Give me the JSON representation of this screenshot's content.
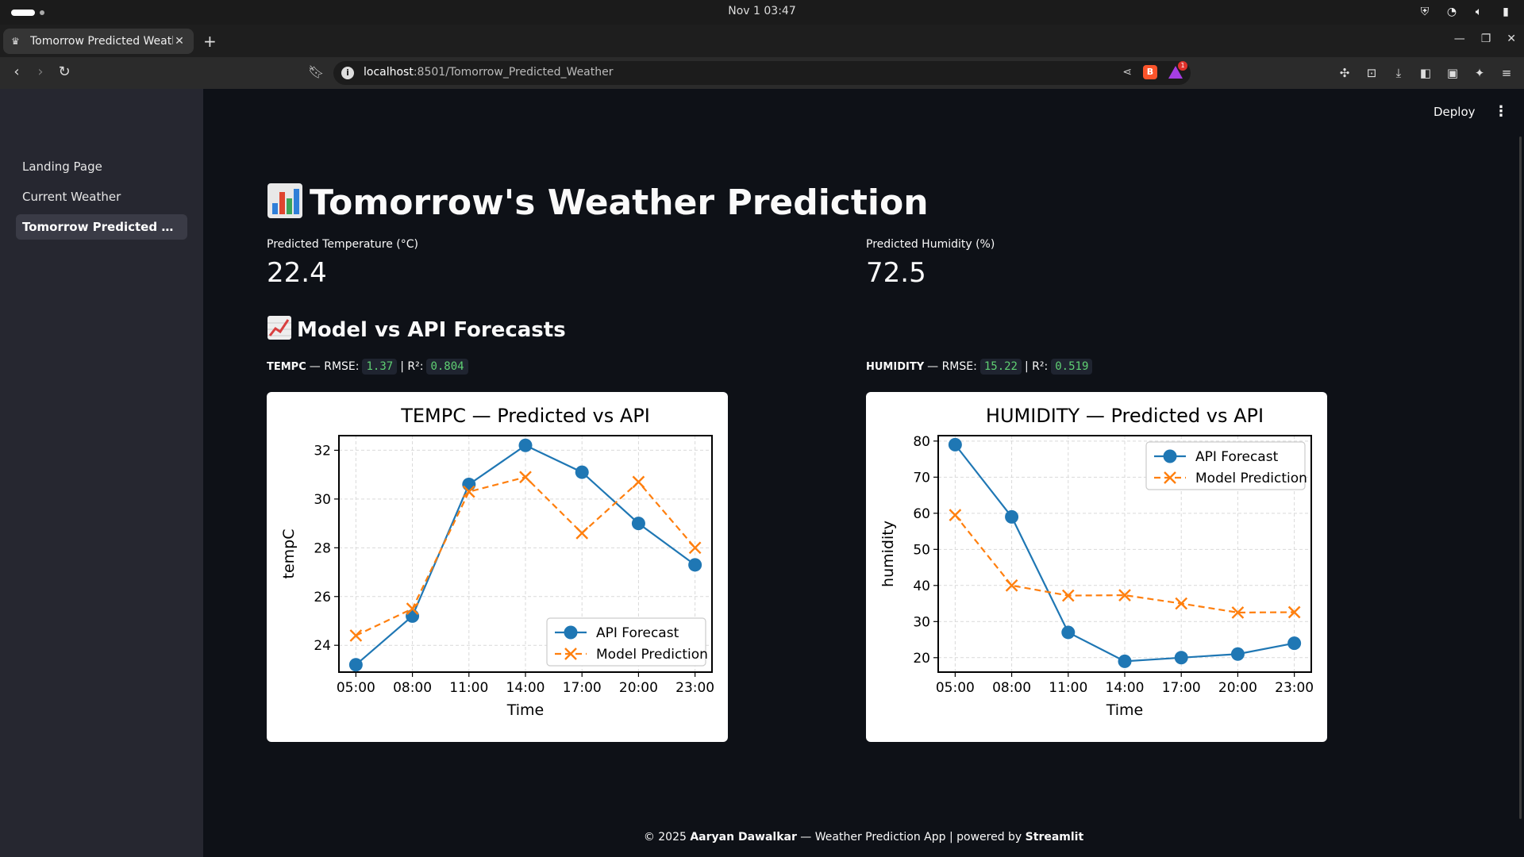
{
  "os": {
    "clock": "Nov 1  03:47"
  },
  "browser": {
    "tab_title": "Tomorrow Predicted Weather",
    "url_host": "localhost",
    "url_path": ":8501/Tomorrow_Predicted_Weather",
    "rewards_badge": "1"
  },
  "app": {
    "deploy_label": "Deploy",
    "sidebar": {
      "items": [
        {
          "label": "Landing Page"
        },
        {
          "label": "Current Weather"
        },
        {
          "label": "Tomorrow Predicted Weat..."
        }
      ]
    },
    "title": "Tomorrow's Weather Prediction",
    "metrics": [
      {
        "label": "Predicted Temperature (°C)",
        "value": "22.4"
      },
      {
        "label": "Predicted Humidity (%)",
        "value": "72.5"
      }
    ],
    "subheader": "Model vs API Forecasts",
    "stats": [
      {
        "name": "TEMPC",
        "rmse_label": "— RMSE:",
        "rmse": "1.37",
        "r2_label": "| R²:",
        "r2": "0.804"
      },
      {
        "name": "HUMIDITY",
        "rmse_label": "— RMSE:",
        "rmse": "15.22",
        "r2_label": "| R²:",
        "r2": "0.519"
      }
    ],
    "footer": {
      "prefix": "© 2025 ",
      "author": "Aaryan Dawalkar",
      "middle": " — Weather Prediction App | powered by ",
      "brand": "Streamlit"
    }
  },
  "colors": {
    "api_series": "#1f77b4",
    "model_series": "#ff7f0e",
    "code_text": "#5fd073"
  },
  "chart_data": [
    {
      "type": "line",
      "title": "TEMPC — Predicted vs API",
      "xlabel": "Time",
      "ylabel": "tempC",
      "categories": [
        "05:00",
        "08:00",
        "11:00",
        "14:00",
        "17:00",
        "20:00",
        "23:00"
      ],
      "x_hours": [
        5.5,
        8.5,
        11.5,
        14.5,
        17.5,
        20.5,
        23.5
      ],
      "xlim": [
        4.6,
        24.4
      ],
      "ylim": [
        22.9,
        32.6
      ],
      "yticks": [
        24,
        26,
        28,
        30,
        32
      ],
      "grid": true,
      "legend_position": "lower-right",
      "series": [
        {
          "name": "API Forecast",
          "marker": "circle",
          "values": [
            23.2,
            25.2,
            30.6,
            32.2,
            31.1,
            29.0,
            27.3
          ]
        },
        {
          "name": "Model Prediction",
          "marker": "x",
          "values": [
            24.4,
            25.5,
            30.3,
            30.9,
            28.6,
            30.7,
            28.0
          ]
        }
      ]
    },
    {
      "type": "line",
      "title": "HUMIDITY — Predicted vs API",
      "xlabel": "Time",
      "ylabel": "humidity",
      "categories": [
        "05:00",
        "08:00",
        "11:00",
        "14:00",
        "17:00",
        "20:00",
        "23:00"
      ],
      "x_hours": [
        5.5,
        8.5,
        11.5,
        14.5,
        17.5,
        20.5,
        23.5
      ],
      "xlim": [
        4.6,
        24.4
      ],
      "ylim": [
        16,
        81.5
      ],
      "yticks": [
        20,
        30,
        40,
        50,
        60,
        70,
        80
      ],
      "grid": true,
      "legend_position": "upper-right",
      "series": [
        {
          "name": "API Forecast",
          "marker": "circle",
          "values": [
            79,
            59,
            27,
            19,
            20,
            21,
            24
          ]
        },
        {
          "name": "Model Prediction",
          "marker": "x",
          "values": [
            59.5,
            40,
            37.2,
            37.3,
            35,
            32.5,
            32.6
          ]
        }
      ]
    }
  ]
}
